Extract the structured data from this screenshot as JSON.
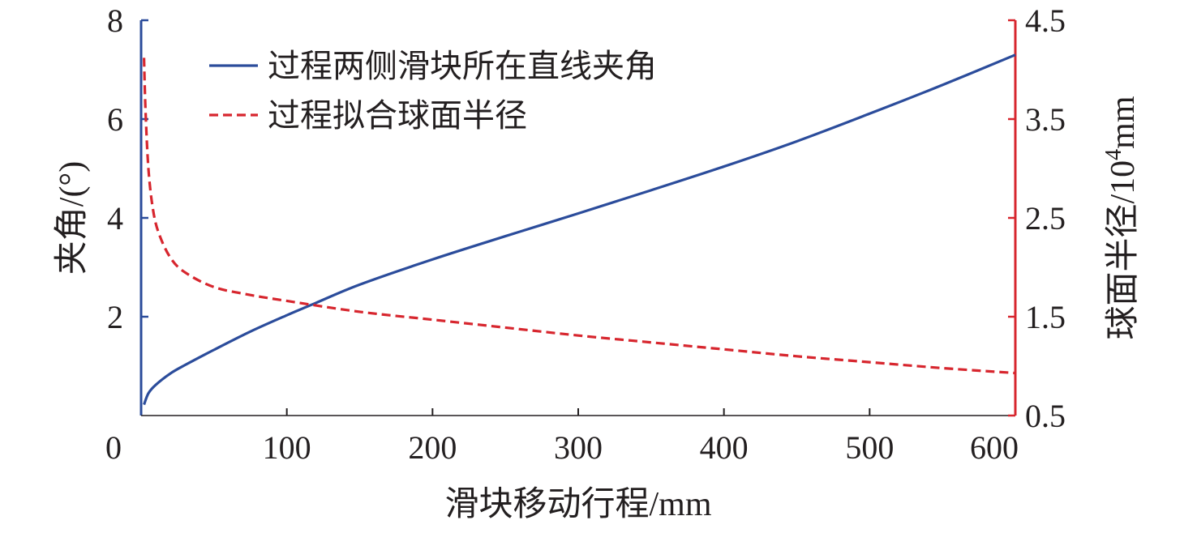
{
  "chart_data": {
    "type": "line",
    "x_axis": {
      "label": "滑块移动行程/mm",
      "range": [
        0,
        600
      ],
      "ticks": [
        0,
        100,
        200,
        300,
        400,
        500,
        600
      ],
      "tick_labels": [
        "0",
        "100",
        "200",
        "300",
        "400",
        "500",
        "600"
      ]
    },
    "y_axis_left": {
      "label": "夹角/(°)",
      "range": [
        0,
        8
      ],
      "ticks": [
        2,
        4,
        6,
        8
      ],
      "tick_labels": [
        "2",
        "4",
        "6",
        "8"
      ],
      "color": "#2b4c9b"
    },
    "y_axis_right": {
      "label": "球面半径/10",
      "label_exponent": "4",
      "label_unit": "mm",
      "range": [
        0.5,
        4.5
      ],
      "ticks": [
        0.5,
        1.5,
        2.5,
        3.5,
        4.5
      ],
      "tick_labels": [
        "0.5",
        "1.5",
        "2.5",
        "3.5",
        "4.5"
      ],
      "color": "#d7262e"
    },
    "grid": false,
    "legend_placement": "top-left",
    "series": [
      {
        "name": "过程两侧滑块所在直线夹角",
        "axis": "left",
        "color": "#2b4c9b",
        "style": "solid",
        "x": [
          2,
          5,
          10,
          20,
          30,
          50,
          75,
          100,
          120,
          150,
          200,
          250,
          300,
          350,
          400,
          450,
          500,
          550,
          600
        ],
        "y": [
          0.22,
          0.45,
          0.62,
          0.85,
          1.02,
          1.33,
          1.7,
          2.03,
          2.28,
          2.65,
          3.16,
          3.63,
          4.09,
          4.56,
          5.04,
          5.55,
          6.11,
          6.69,
          7.3
        ]
      },
      {
        "name": "过程拟合球面半径",
        "axis": "right",
        "color": "#d7262e",
        "style": "dashed",
        "x": [
          2,
          3,
          5,
          8,
          12,
          20,
          30,
          50,
          75,
          100,
          150,
          200,
          250,
          300,
          350,
          400,
          450,
          500,
          550,
          600
        ],
        "y": [
          4.12,
          3.6,
          3.0,
          2.6,
          2.35,
          2.1,
          1.95,
          1.8,
          1.72,
          1.66,
          1.55,
          1.47,
          1.39,
          1.31,
          1.24,
          1.17,
          1.1,
          1.04,
          0.98,
          0.93
        ]
      }
    ]
  }
}
